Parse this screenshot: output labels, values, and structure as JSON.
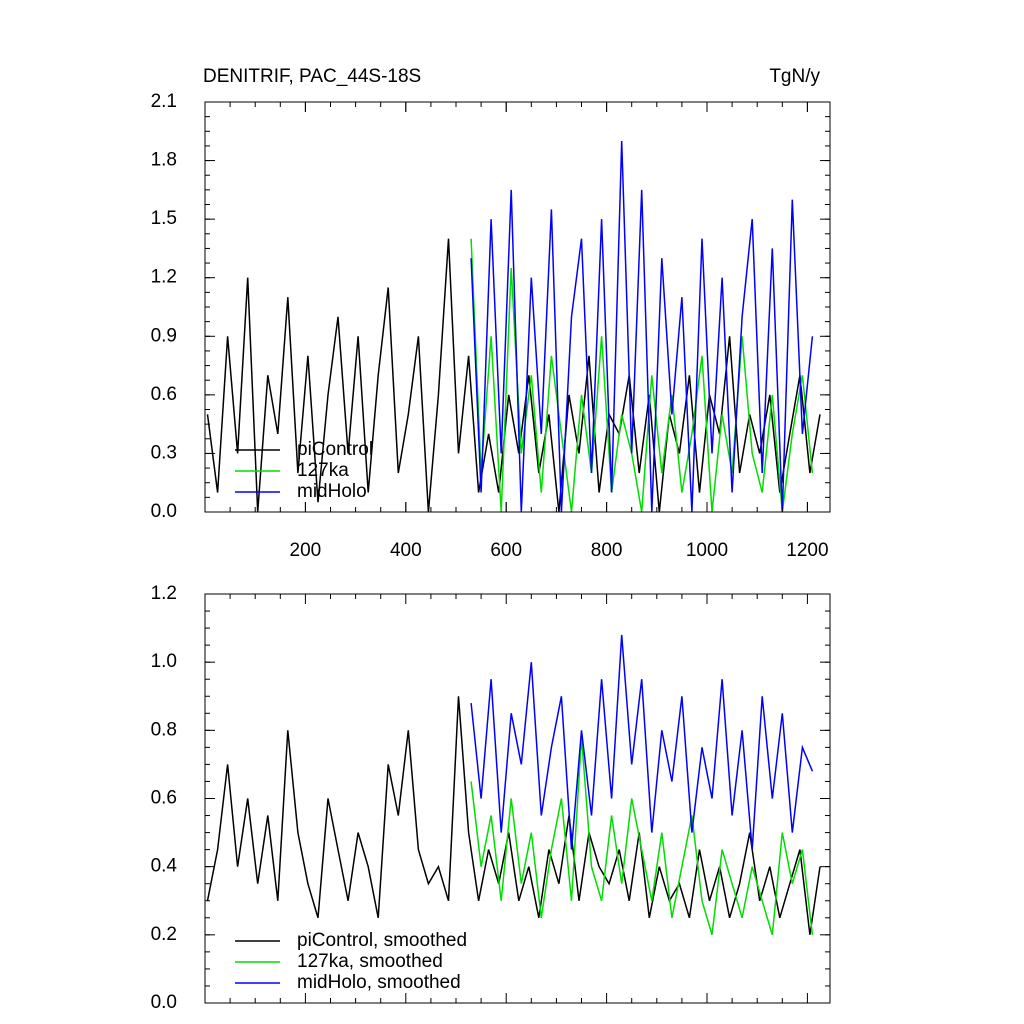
{
  "chart_data": [
    {
      "type": "line",
      "title": "DENITRIF, PAC_44S-18S",
      "y_units": "TgN/y",
      "xlim": [
        0,
        1245
      ],
      "xticks": [
        200,
        400,
        600,
        800,
        1000,
        1200
      ],
      "ylim": [
        0,
        2.1
      ],
      "yticks": [
        {
          "value": 0,
          "label": "0.0"
        },
        0.3,
        0.6,
        0.9,
        1.2,
        1.5,
        1.8,
        2.1
      ],
      "series": [
        {
          "name": "piControl",
          "color": "#000000",
          "x": [
            5,
            25,
            45,
            65,
            85,
            105,
            125,
            145,
            165,
            185,
            205,
            225,
            245,
            265,
            285,
            305,
            325,
            345,
            365,
            385,
            405,
            425,
            445,
            465,
            485,
            505,
            525,
            545,
            565,
            585,
            605,
            625,
            645,
            665,
            685,
            705,
            725,
            745,
            765,
            785,
            805,
            825,
            845,
            865,
            885,
            905,
            925,
            945,
            965,
            985,
            1005,
            1025,
            1045,
            1065,
            1085,
            1105,
            1125,
            1145,
            1165,
            1185,
            1205,
            1225
          ],
          "values": [
            0.5,
            0.1,
            0.9,
            0.3,
            1.2,
            0.0,
            0.7,
            0.4,
            1.1,
            0.2,
            0.8,
            0.05,
            0.6,
            1.0,
            0.3,
            0.9,
            0.1,
            0.7,
            1.15,
            0.2,
            0.5,
            0.9,
            0.0,
            0.6,
            1.4,
            0.3,
            0.8,
            0.1,
            0.4,
            0.1,
            0.6,
            0.3,
            0.7,
            0.2,
            0.5,
            0.0,
            0.6,
            0.3,
            0.8,
            0.1,
            0.5,
            0.4,
            0.7,
            0.2,
            0.6,
            0.0,
            0.5,
            0.3,
            0.7,
            0.1,
            0.6,
            0.4,
            0.9,
            0.2,
            0.5,
            0.3,
            0.6,
            0.1,
            0.4,
            0.7,
            0.2,
            0.5
          ]
        },
        {
          "name": "127ka",
          "color": "#00dd00",
          "x": [
            530,
            550,
            570,
            590,
            610,
            630,
            650,
            670,
            690,
            710,
            730,
            750,
            770,
            790,
            810,
            830,
            850,
            870,
            890,
            910,
            930,
            950,
            970,
            990,
            1010,
            1030,
            1050,
            1070,
            1090,
            1110,
            1130,
            1150,
            1170,
            1190,
            1210
          ],
          "values": [
            1.4,
            0.2,
            0.9,
            0.0,
            1.25,
            0.3,
            0.7,
            0.1,
            0.8,
            0.4,
            0.0,
            0.6,
            0.2,
            0.9,
            0.1,
            0.5,
            0.3,
            0.0,
            0.7,
            0.2,
            0.6,
            0.1,
            0.4,
            0.8,
            0.0,
            0.5,
            0.2,
            0.9,
            0.3,
            0.1,
            0.6,
            0.0,
            0.4,
            0.7,
            0.2
          ]
        },
        {
          "name": "midHolo",
          "color": "#0000ff",
          "x": [
            530,
            550,
            570,
            590,
            610,
            630,
            650,
            670,
            690,
            710,
            730,
            750,
            770,
            790,
            810,
            830,
            850,
            870,
            890,
            910,
            930,
            950,
            970,
            990,
            1010,
            1030,
            1050,
            1070,
            1090,
            1110,
            1130,
            1150,
            1170,
            1190,
            1210
          ],
          "values": [
            1.3,
            0.1,
            1.5,
            0.3,
            1.65,
            0.0,
            1.2,
            0.4,
            1.55,
            0.0,
            1.0,
            1.4,
            0.2,
            1.5,
            0.1,
            1.9,
            0.3,
            1.65,
            0.0,
            1.3,
            0.5,
            1.1,
            0.0,
            1.4,
            0.3,
            1.2,
            0.1,
            1.0,
            1.5,
            0.2,
            1.35,
            0.0,
            1.6,
            0.4,
            0.9
          ]
        }
      ]
    },
    {
      "type": "line",
      "xlim": [
        0,
        1245
      ],
      "ylim": [
        0,
        1.2
      ],
      "yticks": [
        {
          "value": 0,
          "label": "0.0"
        },
        0.2,
        0.4,
        0.6,
        0.8,
        {
          "value": 1,
          "label": "1.0"
        },
        1.2
      ],
      "series": [
        {
          "name": "piControl, smoothed",
          "color": "#000000",
          "x": [
            5,
            25,
            45,
            65,
            85,
            105,
            125,
            145,
            165,
            185,
            205,
            225,
            245,
            265,
            285,
            305,
            325,
            345,
            365,
            385,
            405,
            425,
            445,
            465,
            485,
            505,
            525,
            545,
            565,
            585,
            605,
            625,
            645,
            665,
            685,
            705,
            725,
            745,
            765,
            785,
            805,
            825,
            845,
            865,
            885,
            905,
            925,
            945,
            965,
            985,
            1005,
            1025,
            1045,
            1065,
            1085,
            1105,
            1125,
            1145,
            1165,
            1185,
            1205,
            1225
          ],
          "values": [
            0.3,
            0.45,
            0.7,
            0.4,
            0.6,
            0.35,
            0.55,
            0.3,
            0.8,
            0.5,
            0.35,
            0.25,
            0.6,
            0.45,
            0.3,
            0.5,
            0.4,
            0.25,
            0.7,
            0.55,
            0.8,
            0.45,
            0.35,
            0.4,
            0.3,
            0.9,
            0.5,
            0.3,
            0.45,
            0.35,
            0.5,
            0.3,
            0.4,
            0.25,
            0.45,
            0.35,
            0.55,
            0.3,
            0.5,
            0.4,
            0.35,
            0.45,
            0.3,
            0.5,
            0.25,
            0.4,
            0.3,
            0.35,
            0.25,
            0.45,
            0.3,
            0.4,
            0.25,
            0.35,
            0.5,
            0.3,
            0.4,
            0.25,
            0.35,
            0.45,
            0.2,
            0.4
          ]
        },
        {
          "name": "127ka, smoothed",
          "color": "#00dd00",
          "x": [
            530,
            550,
            570,
            590,
            610,
            630,
            650,
            670,
            690,
            710,
            730,
            750,
            770,
            790,
            810,
            830,
            850,
            870,
            890,
            910,
            930,
            950,
            970,
            990,
            1010,
            1030,
            1050,
            1070,
            1090,
            1110,
            1130,
            1150,
            1170,
            1190,
            1210
          ],
          "values": [
            0.65,
            0.4,
            0.55,
            0.3,
            0.6,
            0.35,
            0.5,
            0.25,
            0.45,
            0.6,
            0.3,
            0.78,
            0.4,
            0.3,
            0.55,
            0.35,
            0.6,
            0.45,
            0.3,
            0.5,
            0.25,
            0.4,
            0.55,
            0.3,
            0.2,
            0.45,
            0.35,
            0.25,
            0.4,
            0.3,
            0.2,
            0.5,
            0.35,
            0.45,
            0.2
          ]
        },
        {
          "name": "midHolo, smoothed",
          "color": "#0000ff",
          "x": [
            530,
            550,
            570,
            590,
            610,
            630,
            650,
            670,
            690,
            710,
            730,
            750,
            770,
            790,
            810,
            830,
            850,
            870,
            890,
            910,
            930,
            950,
            970,
            990,
            1010,
            1030,
            1050,
            1070,
            1090,
            1110,
            1130,
            1150,
            1170,
            1190,
            1210
          ],
          "values": [
            0.88,
            0.6,
            0.95,
            0.5,
            0.85,
            0.7,
            1.0,
            0.55,
            0.75,
            0.9,
            0.45,
            0.8,
            0.55,
            0.95,
            0.6,
            1.08,
            0.7,
            0.95,
            0.5,
            0.8,
            0.65,
            0.9,
            0.5,
            0.75,
            0.6,
            0.95,
            0.55,
            0.8,
            0.45,
            0.9,
            0.6,
            0.85,
            0.5,
            0.75,
            0.68
          ]
        }
      ]
    }
  ]
}
